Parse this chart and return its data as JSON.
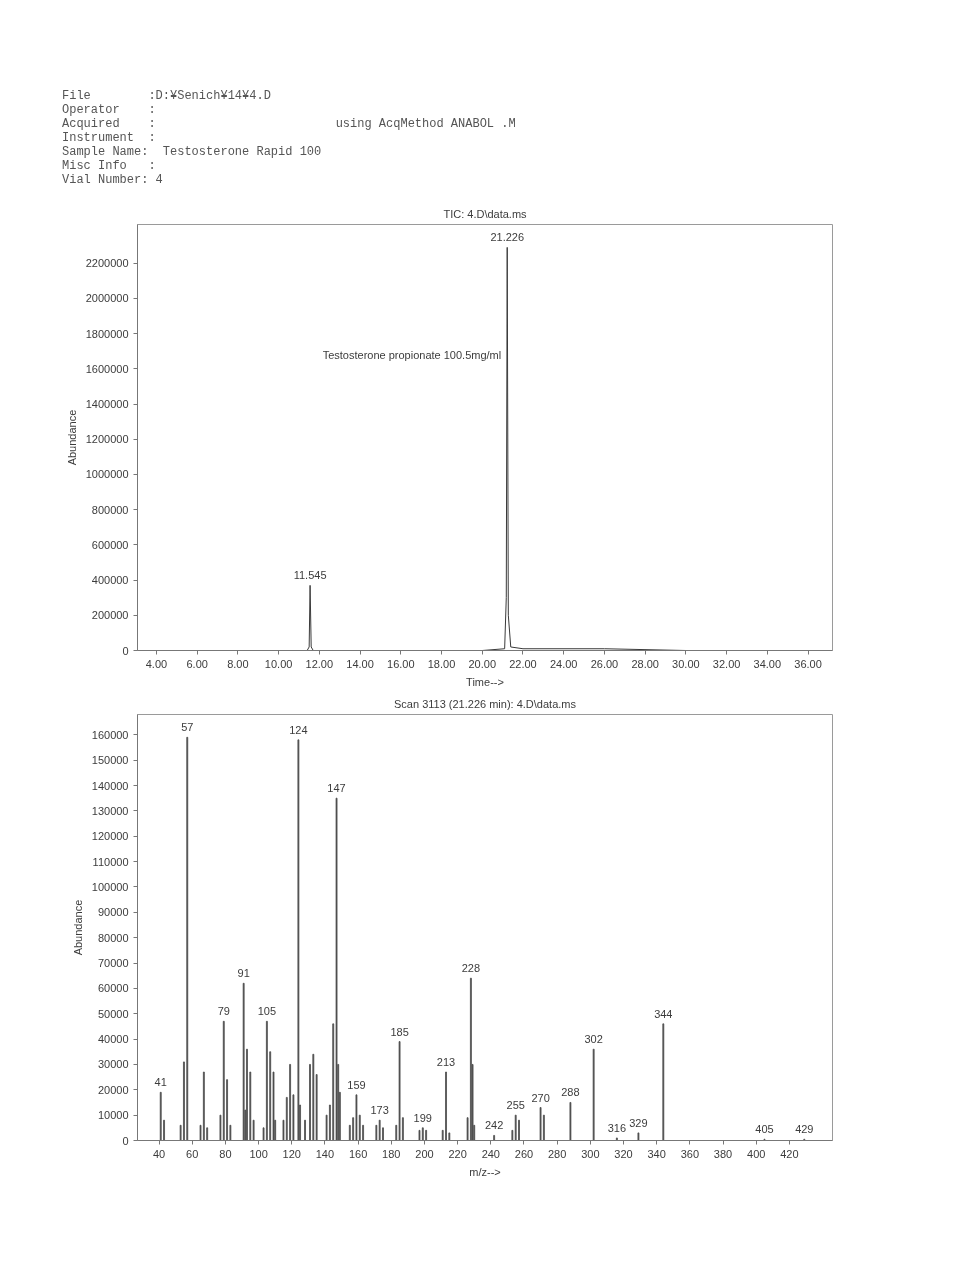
{
  "chart_data": [
    {
      "type": "line",
      "title": "TIC: 4.D\\data.ms",
      "xlabel": "Time-->",
      "ylabel": "Abundance",
      "annotations": [
        "File        :D:¥Senich¥14¥4.D",
        "Operator    :",
        "Acquired    :                         using AcqMethod ANABOL .M",
        "Instrument  :",
        "Sample Name:  Testosterone Rapid 100",
        "Misc Info   :",
        "Vial Number: 4",
        {
          "text": "Testosterone propionate 100.5mg/ml",
          "x": 21.226,
          "y": 1680000
        },
        {
          "text": "11.545",
          "x": 11.545,
          "y": 370000
        },
        {
          "text": "21.226",
          "x": 21.226,
          "y": 2290000
        }
      ],
      "x": [
        3.1,
        11.4,
        11.5,
        11.545,
        11.6,
        11.7,
        20.0,
        21.1,
        21.18,
        21.226,
        21.28,
        21.4,
        22.0,
        26.0,
        30.0,
        37.1
      ],
      "values": [
        0,
        0,
        20000,
        370000,
        20000,
        0,
        0,
        10000,
        300000,
        2290000,
        200000,
        20000,
        10000,
        10000,
        0,
        0
      ],
      "color": "#3a3a3a",
      "xlim": [
        3.07,
        37.2
      ],
      "xticks": [
        {
          "value": 4,
          "label": "4.00"
        },
        {
          "value": 6,
          "label": "6.00"
        },
        {
          "value": 8,
          "label": "8.00"
        },
        {
          "value": 10,
          "label": "10.00"
        },
        {
          "value": 12,
          "label": "12.00"
        },
        {
          "value": 14,
          "label": "14.00"
        },
        {
          "value": 16,
          "label": "16.00"
        },
        {
          "value": 18,
          "label": "18.00"
        },
        {
          "value": 20,
          "label": "20.00"
        },
        {
          "value": 22,
          "label": "22.00"
        },
        {
          "value": 24,
          "label": "24.00"
        },
        {
          "value": 26,
          "label": "26.00"
        },
        {
          "value": 28,
          "label": "28.00"
        },
        {
          "value": 30,
          "label": "30.00"
        },
        {
          "value": 32,
          "label": "32.00"
        },
        {
          "value": 34,
          "label": "34.00"
        },
        {
          "value": 36,
          "label": "36.00"
        }
      ],
      "ylim": [
        0,
        2420000
      ],
      "yticks": [
        0,
        200000,
        400000,
        600000,
        800000,
        1000000,
        1200000,
        1400000,
        1600000,
        1800000,
        2000000,
        2200000
      ]
    },
    {
      "type": "bar",
      "title": "Scan 3113 (21.226 min): 4.D\\data.ms",
      "xlabel": "m/z-->",
      "ylabel": "Abundance",
      "x": [
        41,
        43,
        53,
        55,
        57,
        65,
        67,
        69,
        77,
        79,
        81,
        83,
        91,
        92,
        93,
        95,
        97,
        103,
        105,
        107,
        109,
        110,
        115,
        117,
        119,
        121,
        124,
        125,
        128,
        131,
        133,
        135,
        141,
        143,
        145,
        147,
        148,
        149,
        155,
        157,
        159,
        161,
        163,
        171,
        173,
        175,
        183,
        185,
        187,
        197,
        199,
        201,
        211,
        213,
        215,
        226,
        228,
        229,
        230,
        242,
        253,
        255,
        257,
        270,
        272,
        288,
        302,
        316,
        329,
        344,
        405,
        429
      ],
      "values": [
        19000,
        8000,
        6000,
        31000,
        159000,
        6000,
        27000,
        5000,
        10000,
        47000,
        24000,
        6000,
        62000,
        12000,
        36000,
        27000,
        8000,
        5000,
        47000,
        35000,
        27000,
        8000,
        8000,
        17000,
        30000,
        18000,
        158000,
        14000,
        8000,
        30000,
        34000,
        26000,
        10000,
        14000,
        46000,
        135000,
        30000,
        19000,
        6000,
        9000,
        18000,
        10000,
        6000,
        6000,
        8000,
        5000,
        6000,
        39000,
        9000,
        4000,
        5000,
        4000,
        4000,
        27000,
        3000,
        9000,
        64000,
        30000,
        6000,
        2000,
        4000,
        10000,
        8000,
        13000,
        10000,
        15000,
        36000,
        1000,
        3000,
        46000,
        500,
        500
      ],
      "annotations": [
        {
          "text": "41",
          "x": 41,
          "y": 19000
        },
        {
          "text": "57",
          "x": 57,
          "y": 159000
        },
        {
          "text": "79",
          "x": 79,
          "y": 47000
        },
        {
          "text": "91",
          "x": 91,
          "y": 62000
        },
        {
          "text": "105",
          "x": 105,
          "y": 47000
        },
        {
          "text": "124",
          "x": 124,
          "y": 158000
        },
        {
          "text": "147",
          "x": 147,
          "y": 135000
        },
        {
          "text": "159",
          "x": 159,
          "y": 18000
        },
        {
          "text": "173",
          "x": 173,
          "y": 8000
        },
        {
          "text": "185",
          "x": 185,
          "y": 39000
        },
        {
          "text": "199",
          "x": 199,
          "y": 5000
        },
        {
          "text": "213",
          "x": 213,
          "y": 27000
        },
        {
          "text": "228",
          "x": 228,
          "y": 64000
        },
        {
          "text": "242",
          "x": 242,
          "y": 2000
        },
        {
          "text": "255",
          "x": 255,
          "y": 10000
        },
        {
          "text": "270",
          "x": 270,
          "y": 13000
        },
        {
          "text": "288",
          "x": 288,
          "y": 15000
        },
        {
          "text": "302",
          "x": 302,
          "y": 36000
        },
        {
          "text": "316",
          "x": 316,
          "y": 1000
        },
        {
          "text": "329",
          "x": 329,
          "y": 3000
        },
        {
          "text": "344",
          "x": 344,
          "y": 46000
        },
        {
          "text": "405",
          "x": 405,
          "y": 500
        },
        {
          "text": "429",
          "x": 429,
          "y": 500
        }
      ],
      "color": "#4d4d4d",
      "xlim": [
        27,
        446
      ],
      "xticks": [
        40,
        60,
        80,
        100,
        120,
        140,
        160,
        180,
        200,
        220,
        240,
        260,
        280,
        300,
        320,
        340,
        360,
        380,
        400,
        420
      ],
      "ylim": [
        0,
        168000
      ],
      "yticks": [
        0,
        10000,
        20000,
        30000,
        40000,
        50000,
        60000,
        70000,
        80000,
        90000,
        100000,
        110000,
        120000,
        130000,
        140000,
        150000,
        160000
      ]
    }
  ]
}
